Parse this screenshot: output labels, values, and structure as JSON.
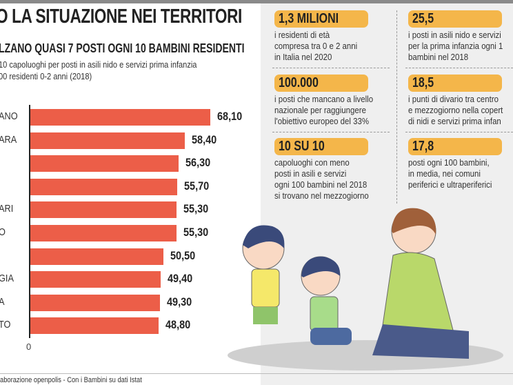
{
  "header": {
    "title": "O LA SITUAZIONE NEI TERRITORI",
    "subtitle": "LZANO QUASI 7 POSTI OGNI 10 BAMBINI RESIDENTI",
    "desc1": "10 capoluoghi per posti in asili nido e servizi prima infanzia",
    "desc2": "00 residenti 0-2 anni (2018)"
  },
  "chart_data": {
    "type": "bar",
    "orientation": "horizontal",
    "categories": [
      "ANO",
      "ARA",
      "",
      "",
      "ARI",
      "O",
      "",
      "GIA",
      "A",
      "TO"
    ],
    "values": [
      68.1,
      58.4,
      56.3,
      55.7,
      55.3,
      55.3,
      50.5,
      49.4,
      49.3,
      48.8
    ],
    "value_labels": [
      "68,10",
      "58,40",
      "56,30",
      "55,70",
      "55,30",
      "55,30",
      "50,50",
      "49,40",
      "49,30",
      "48,80"
    ],
    "x_tick": "0",
    "bar_color": "#ec5e48"
  },
  "stats": [
    {
      "value": "1,3 MILIONI",
      "lines": [
        "i residenti di età",
        "compresa tra 0 e 2 anni",
        "in Italia nel 2020"
      ]
    },
    {
      "value": "100.000",
      "lines": [
        "i posti che mancano a livello",
        "nazionale per raggiungere",
        "l'obiettivo europeo del 33%"
      ]
    },
    {
      "value": "10 SU 10",
      "lines": [
        "capoluoghi con meno",
        "posti in asili e servizi",
        "ogni 100 bambini nel 2018",
        "si trovano nel mezzogiorno"
      ]
    },
    {
      "value": "25,5",
      "lines": [
        "i posti in asili nido e servizi",
        "per la prima infanzia ogni 1",
        "bambini nel 2018"
      ]
    },
    {
      "value": "18,5",
      "lines": [
        "i punti di divario tra centro",
        "e mezzogiorno nella copert",
        "di nidi e servizi prima infan"
      ]
    },
    {
      "value": "17,8",
      "lines": [
        "posti ogni 100 bambini,",
        "in media, nei comuni",
        "periferici e ultraperiferici"
      ]
    }
  ],
  "source": "aborazione openpolis - Con i Bambini su dati Istat",
  "accent": "#f4b64a"
}
